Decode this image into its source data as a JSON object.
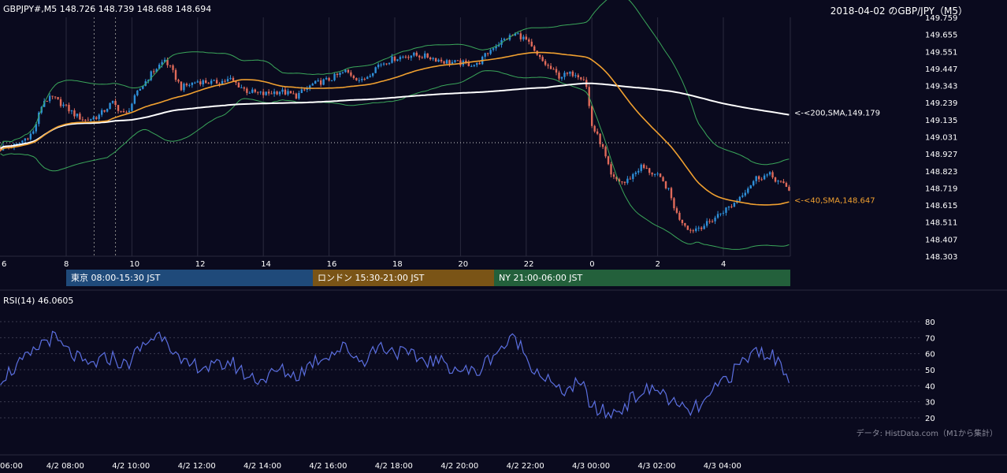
{
  "header": {
    "symbol_quote": "GBPJPY#,M5 148.726 148.739 148.688 148.694",
    "chart_title": "2018-04-02 のGBP/JPY（M5）"
  },
  "sessions": [
    {
      "label": "東京 08:00-15:30 JST",
      "color": "#1f4a7a"
    },
    {
      "label": "ロンドン 15:30-21:00 JST",
      "color": "#7a5416"
    },
    {
      "label": "NY 21:00-06:00 JST",
      "color": "#23603b"
    }
  ],
  "colors": {
    "background": "#0a0a1e",
    "bull": "#2e8fd8",
    "bear": "#e06a5a",
    "sma200": "#ffffff",
    "sma40": "#f0a030",
    "bollinger": "#3aa65a",
    "rsi": "#5b6fe0",
    "grid": "#2a2a3e"
  },
  "chart_data": [
    {
      "type": "candlestick",
      "title": "GBPJPY#,M5",
      "y_ticks": [
        "149.759",
        "149.655",
        "149.551",
        "149.447",
        "149.343",
        "149.239",
        "149.135",
        "149.031",
        "148.927",
        "148.823",
        "148.719",
        "148.615",
        "148.511",
        "148.407",
        "148.303"
      ],
      "x_ticks": [
        "6",
        "8",
        "10",
        "12",
        "14",
        "16",
        "18",
        "20",
        "22",
        "0",
        "2",
        "4"
      ],
      "ylim": [
        148.303,
        149.759
      ],
      "series": [
        {
          "name": "200,SMA",
          "last_value": 149.179,
          "label": "<-<200,SMA,149.179"
        },
        {
          "name": "40,SMA",
          "last_value": 148.647,
          "label": "<-<40,SMA,148.647"
        }
      ],
      "reference_line": 148.995,
      "price_path": [
        [
          6.0,
          148.96
        ],
        [
          6.5,
          148.98
        ],
        [
          7.0,
          149.06
        ],
        [
          7.3,
          149.25
        ],
        [
          7.6,
          149.27
        ],
        [
          8.0,
          149.21
        ],
        [
          8.3,
          149.16
        ],
        [
          8.6,
          149.13
        ],
        [
          9.0,
          149.16
        ],
        [
          9.4,
          149.24
        ],
        [
          9.8,
          149.16
        ],
        [
          10.2,
          149.31
        ],
        [
          10.6,
          149.42
        ],
        [
          11.0,
          149.5
        ],
        [
          11.2,
          149.44
        ],
        [
          11.5,
          149.33
        ],
        [
          12.0,
          149.37
        ],
        [
          12.5,
          149.36
        ],
        [
          13.0,
          149.38
        ],
        [
          13.5,
          149.31
        ],
        [
          14.0,
          149.29
        ],
        [
          14.5,
          149.31
        ],
        [
          15.0,
          149.28
        ],
        [
          15.5,
          149.35
        ],
        [
          16.0,
          149.38
        ],
        [
          16.5,
          149.43
        ],
        [
          17.0,
          149.37
        ],
        [
          17.5,
          149.47
        ],
        [
          18.0,
          149.51
        ],
        [
          18.5,
          149.53
        ],
        [
          19.0,
          149.52
        ],
        [
          19.5,
          149.49
        ],
        [
          20.0,
          149.48
        ],
        [
          20.5,
          149.47
        ],
        [
          21.0,
          149.58
        ],
        [
          21.4,
          149.63
        ],
        [
          21.7,
          149.66
        ],
        [
          22.0,
          149.62
        ],
        [
          22.3,
          149.53
        ],
        [
          22.6,
          149.47
        ],
        [
          23.0,
          149.4
        ],
        [
          23.5,
          149.42
        ],
        [
          23.8,
          149.38
        ],
        [
          24.0,
          149.1
        ],
        [
          24.3,
          148.98
        ],
        [
          24.6,
          148.78
        ],
        [
          25.0,
          148.75
        ],
        [
          25.5,
          148.85
        ],
        [
          26.0,
          148.79
        ],
        [
          26.3,
          148.72
        ],
        [
          26.6,
          148.55
        ],
        [
          27.0,
          148.46
        ],
        [
          27.5,
          148.5
        ],
        [
          28.0,
          148.58
        ],
        [
          28.3,
          148.62
        ],
        [
          28.6,
          148.69
        ],
        [
          29.0,
          148.78
        ],
        [
          29.4,
          148.8
        ],
        [
          29.8,
          148.74
        ],
        [
          30.0,
          148.71
        ]
      ]
    },
    {
      "type": "line",
      "title": "RSI(14) 46.0605",
      "y_ticks": [
        "80",
        "70",
        "60",
        "50",
        "40",
        "30",
        "20"
      ],
      "ylim": [
        20,
        80
      ],
      "rsi_path": [
        [
          6.0,
          45
        ],
        [
          6.5,
          52
        ],
        [
          7.0,
          60
        ],
        [
          7.3,
          68
        ],
        [
          7.6,
          70
        ],
        [
          8.0,
          62
        ],
        [
          8.3,
          58
        ],
        [
          8.6,
          52
        ],
        [
          9.0,
          55
        ],
        [
          9.4,
          58
        ],
        [
          9.8,
          52
        ],
        [
          10.2,
          62
        ],
        [
          10.6,
          70
        ],
        [
          11.0,
          73
        ],
        [
          11.2,
          65
        ],
        [
          11.5,
          52
        ],
        [
          12.0,
          53
        ],
        [
          12.5,
          51
        ],
        [
          13.0,
          55
        ],
        [
          13.5,
          46
        ],
        [
          14.0,
          44
        ],
        [
          14.5,
          50
        ],
        [
          15.0,
          46
        ],
        [
          15.5,
          55
        ],
        [
          16.0,
          60
        ],
        [
          16.5,
          64
        ],
        [
          17.0,
          55
        ],
        [
          17.5,
          65
        ],
        [
          18.0,
          62
        ],
        [
          18.5,
          58
        ],
        [
          19.0,
          56
        ],
        [
          19.5,
          54
        ],
        [
          20.0,
          50
        ],
        [
          20.5,
          48
        ],
        [
          21.0,
          60
        ],
        [
          21.4,
          66
        ],
        [
          21.7,
          70
        ],
        [
          22.0,
          58
        ],
        [
          22.3,
          50
        ],
        [
          22.6,
          45
        ],
        [
          23.0,
          36
        ],
        [
          23.5,
          40
        ],
        [
          23.8,
          38
        ],
        [
          24.0,
          26
        ],
        [
          24.3,
          24
        ],
        [
          24.6,
          22
        ],
        [
          25.0,
          28
        ],
        [
          25.5,
          36
        ],
        [
          26.0,
          38
        ],
        [
          26.3,
          33
        ],
        [
          26.6,
          26
        ],
        [
          27.0,
          24
        ],
        [
          27.5,
          30
        ],
        [
          28.0,
          44
        ],
        [
          28.3,
          48
        ],
        [
          28.6,
          55
        ],
        [
          29.0,
          62
        ],
        [
          29.4,
          60
        ],
        [
          29.8,
          52
        ],
        [
          30.0,
          46
        ]
      ]
    }
  ],
  "time_axis": [
    "06:00",
    "4/2 08:00",
    "4/2 10:00",
    "4/2 12:00",
    "4/2 14:00",
    "4/2 16:00",
    "4/2 18:00",
    "4/2 20:00",
    "4/2 22:00",
    "4/3 00:00",
    "4/3 02:00",
    "4/3 04:00"
  ],
  "rsi_title": "RSI(14) 46.0605",
  "source_note": "データ: HistData.com（M1から集計）"
}
